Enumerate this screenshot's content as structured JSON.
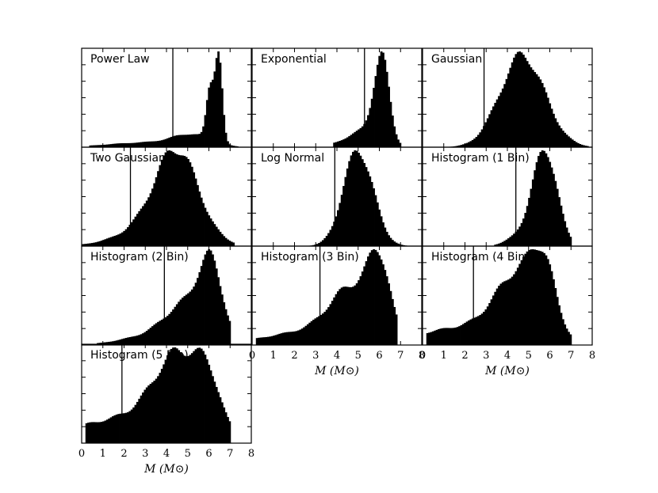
{
  "figure": {
    "rows": 4,
    "cols": 3
  },
  "chart_data": [
    {
      "type": "bar",
      "title": "Power Law",
      "row": 0,
      "col": 0,
      "xlim": [
        0,
        8
      ],
      "ylabel_hidden": true,
      "xlabel": "",
      "show_x_ticks": false,
      "vline": 4.3,
      "peaks": [
        {
          "mu": 6.45,
          "sigma": 0.17,
          "amp": 1.0
        },
        {
          "mu": 6.05,
          "sigma": 0.17,
          "amp": 0.55
        },
        {
          "mu": 5.2,
          "sigma": 0.9,
          "amp": 0.12
        },
        {
          "mu": 3.0,
          "sigma": 1.8,
          "amp": 0.05
        }
      ],
      "xmin": 0.4,
      "xmax": 7.4
    },
    {
      "type": "bar",
      "title": "Exponential",
      "row": 0,
      "col": 1,
      "xlim": [
        0,
        8
      ],
      "xlabel": "",
      "show_x_ticks": false,
      "vline": 5.3,
      "peaks": [
        {
          "mu": 6.1,
          "sigma": 0.35,
          "amp": 1.0
        },
        {
          "mu": 5.3,
          "sigma": 0.7,
          "amp": 0.18
        },
        {
          "mu": 4.2,
          "sigma": 0.9,
          "amp": 0.03
        }
      ],
      "xmin": 3.8,
      "xmax": 7.0
    },
    {
      "type": "bar",
      "title": "Gaussian",
      "row": 0,
      "col": 2,
      "xlim": [
        0,
        8
      ],
      "xlabel": "",
      "show_x_ticks": false,
      "vline": 2.9,
      "peaks": [
        {
          "mu": 4.7,
          "sigma": 1.05,
          "amp": 1.0
        }
      ],
      "xmin": 0.6,
      "xmax": 7.8
    },
    {
      "type": "bar",
      "title": "Two Gaussian",
      "row": 1,
      "col": 0,
      "xlim": [
        0,
        8
      ],
      "xlabel": "",
      "show_x_ticks": false,
      "vline": 2.3,
      "peaks": [
        {
          "mu": 4.5,
          "sigma": 1.0,
          "amp": 0.85
        },
        {
          "mu": 3.5,
          "sigma": 1.6,
          "amp": 0.2
        }
      ],
      "xmin": 0.0,
      "xmax": 7.2
    },
    {
      "type": "bar",
      "title": "Log Normal",
      "row": 1,
      "col": 1,
      "xlim": [
        0,
        8
      ],
      "xlabel": "",
      "show_x_ticks": false,
      "vline": 3.9,
      "peaks": [
        {
          "mu": 5.0,
          "sigma": 0.7,
          "amp": 1.0
        }
      ],
      "xmin": 2.4,
      "xmax": 7.4
    },
    {
      "type": "bar",
      "title": "Histogram (1 Bin)",
      "row": 1,
      "col": 2,
      "xlim": [
        0,
        8
      ],
      "xlabel": "",
      "show_x_ticks": false,
      "vline": 4.4,
      "peaks": [
        {
          "mu": 5.8,
          "sigma": 0.55,
          "amp": 0.95
        },
        {
          "mu": 4.9,
          "sigma": 0.7,
          "amp": 0.15
        }
      ],
      "xmin": 3.4,
      "xmax": 7.0
    },
    {
      "type": "bar",
      "title": "Histogram (2 Bin)",
      "row": 2,
      "col": 0,
      "xlim": [
        0,
        8
      ],
      "xlabel": "",
      "show_x_ticks": false,
      "vline": 3.9,
      "peaks": [
        {
          "mu": 6.1,
          "sigma": 0.55,
          "amp": 0.8
        },
        {
          "mu": 5.0,
          "sigma": 1.0,
          "amp": 0.45
        },
        {
          "mu": 3.2,
          "sigma": 1.4,
          "amp": 0.1
        }
      ],
      "xmin": 0.7,
      "xmax": 7.0
    },
    {
      "type": "bar",
      "title": "Histogram (3 Bin)",
      "row": 2,
      "col": 1,
      "xlim": [
        0,
        8
      ],
      "xlabel": "M (M⊙)",
      "show_x_ticks": true,
      "vline": 3.2,
      "peaks": [
        {
          "mu": 6.0,
          "sigma": 0.5,
          "amp": 0.6
        },
        {
          "mu": 4.8,
          "sigma": 1.1,
          "amp": 0.5
        },
        {
          "mu": 2.5,
          "sigma": 2.0,
          "amp": 0.12
        }
      ],
      "xmin": 0.2,
      "xmax": 6.8
    },
    {
      "type": "bar",
      "title": "Histogram (4 Bin)",
      "row": 2,
      "col": 2,
      "xlim": [
        0,
        8
      ],
      "xlabel": "M (M⊙)",
      "show_x_ticks": true,
      "vline": 2.4,
      "peaks": [
        {
          "mu": 5.7,
          "sigma": 0.55,
          "amp": 0.45
        },
        {
          "mu": 4.6,
          "sigma": 1.1,
          "amp": 0.55
        },
        {
          "mu": 2.0,
          "sigma": 2.2,
          "amp": 0.15
        }
      ],
      "xmin": 0.2,
      "xmax": 7.0
    },
    {
      "type": "bar",
      "title": "Histogram (5 Bin)",
      "row": 3,
      "col": 0,
      "xlim": [
        0,
        8
      ],
      "xlabel": "M (M⊙)",
      "show_x_ticks": true,
      "vline": 1.9,
      "peaks": [
        {
          "mu": 4.7,
          "sigma": 1.2,
          "amp": 0.65
        },
        {
          "mu": 6.0,
          "sigma": 0.5,
          "amp": 0.25
        },
        {
          "mu": 2.0,
          "sigma": 2.5,
          "amp": 0.2
        }
      ],
      "xmin": 0.2,
      "xmax": 7.0
    }
  ],
  "tick_labels": [
    "0",
    "1",
    "2",
    "3",
    "4",
    "5",
    "6",
    "7",
    "8"
  ]
}
